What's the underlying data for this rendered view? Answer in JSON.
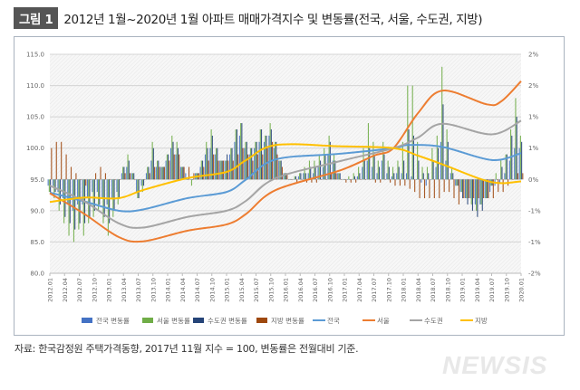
{
  "title": {
    "badge": "그림 1",
    "text": "2012년 1월~2020년 1월 아파트 매매가격지수 및 변동률(전국, 서울, 수도권, 지방)"
  },
  "source": "자료: 한국감정원 주택가격동향, 2017년 11월 지수 = 100, 변동률은 전월대비 기준.",
  "watermark": "NEWSIS",
  "chart_data": {
    "type": "bar+line",
    "title": "2012년 1월~2020년 1월 아파트 매매가격지수 및 변동률(전국, 서울, 수도권, 지방)",
    "ylim_left": [
      80,
      115
    ],
    "ylim_right_pct": [
      -1.5,
      2.0
    ],
    "left_ticks": [
      "80.0",
      "85.0",
      "90.0",
      "95.0",
      "100.0",
      "105.0",
      "110.0",
      "115.0"
    ],
    "right_ticks": [
      "-2%",
      "-1%",
      "-1%",
      "0%",
      "1%",
      "1%",
      "2%",
      "2%"
    ],
    "x_tick_labels": [
      "2012.01",
      "2012.04",
      "2012.07",
      "2012.10",
      "2013.01",
      "2013.04",
      "2013.07",
      "2013.10",
      "2014.01",
      "2014.04",
      "2014.07",
      "2014.10",
      "2015.01",
      "2015.04",
      "2015.07",
      "2015.10",
      "2016.01",
      "2016.04",
      "2016.07",
      "2016.10",
      "2017.01",
      "2017.04",
      "2017.07",
      "2017.10",
      "2018.01",
      "2018.04",
      "2018.07",
      "2018.10",
      "2019.01",
      "2019.04",
      "2019.07",
      "2019.10",
      "2020.01"
    ],
    "months": 97,
    "grid": true,
    "legend_position": "bottom",
    "bar_series": [
      {
        "name": "전국 변동률",
        "color": "#4472c4",
        "values": [
          -0.1,
          -0.1,
          -0.2,
          -0.3,
          -0.4,
          -0.5,
          -0.4,
          -0.4,
          -0.3,
          -0.2,
          -0.2,
          -0.3,
          -0.4,
          -0.3,
          -0.2,
          0.1,
          0.2,
          0.1,
          -0.2,
          -0.1,
          0.1,
          0.3,
          0.2,
          0.2,
          0.3,
          0.5,
          0.4,
          0.2,
          0.1,
          0.0,
          0.1,
          0.2,
          0.4,
          0.5,
          0.4,
          0.3,
          0.3,
          0.4,
          0.6,
          0.7,
          0.5,
          0.4,
          0.5,
          0.6,
          0.6,
          0.7,
          0.5,
          0.3,
          0.1,
          0.0,
          0.0,
          0.05,
          0.1,
          0.1,
          0.1,
          0.2,
          0.2,
          0.4,
          0.3,
          0.1,
          0.0,
          0.0,
          0.0,
          0.05,
          0.2,
          0.3,
          0.2,
          0.1,
          0.3,
          0.1,
          0.05,
          0.1,
          0.1,
          0.1,
          0.05,
          0.0,
          -0.05,
          -0.1,
          0.0,
          0.2,
          0.6,
          0.3,
          0.1,
          -0.1,
          -0.2,
          -0.3,
          -0.3,
          -0.4,
          -0.4,
          -0.3,
          -0.2,
          -0.1,
          -0.05,
          0.1,
          0.3,
          0.5,
          0.5
        ]
      },
      {
        "name": "서울 변동률",
        "color": "#70ad47",
        "values": [
          -0.2,
          -0.3,
          -0.5,
          -0.7,
          -0.9,
          -1.0,
          -0.8,
          -0.9,
          -0.7,
          -0.6,
          -0.5,
          -0.7,
          -0.9,
          -0.6,
          -0.4,
          0.2,
          0.4,
          0.1,
          -0.3,
          -0.2,
          0.2,
          0.6,
          0.3,
          0.2,
          0.4,
          0.7,
          0.6,
          0.2,
          0.0,
          -0.1,
          0.1,
          0.3,
          0.6,
          0.8,
          0.5,
          0.3,
          0.3,
          0.5,
          0.8,
          0.9,
          0.6,
          0.5,
          0.6,
          0.8,
          0.7,
          0.9,
          0.6,
          0.3,
          0.1,
          0.0,
          0.05,
          0.1,
          0.2,
          0.3,
          0.3,
          0.4,
          0.5,
          0.7,
          0.4,
          0.1,
          0.0,
          0.05,
          0.1,
          0.2,
          0.5,
          0.9,
          0.6,
          0.3,
          0.6,
          0.3,
          0.2,
          0.3,
          0.6,
          1.5,
          1.5,
          0.6,
          0.2,
          0.2,
          0.5,
          0.7,
          1.8,
          0.8,
          0.2,
          -0.1,
          -0.2,
          -0.3,
          -0.4,
          -0.5,
          -0.4,
          -0.3,
          -0.1,
          0.1,
          0.3,
          0.4,
          0.8,
          1.3,
          0.7
        ]
      },
      {
        "name": "수도권 변동률",
        "color": "#264478",
        "values": [
          -0.2,
          -0.2,
          -0.4,
          -0.6,
          -0.7,
          -0.8,
          -0.7,
          -0.7,
          -0.6,
          -0.5,
          -0.4,
          -0.6,
          -0.7,
          -0.5,
          -0.3,
          0.2,
          0.3,
          0.1,
          -0.3,
          -0.1,
          0.2,
          0.5,
          0.3,
          0.2,
          0.4,
          0.6,
          0.5,
          0.2,
          0.0,
          0.0,
          0.1,
          0.3,
          0.5,
          0.7,
          0.5,
          0.3,
          0.4,
          0.5,
          0.8,
          0.9,
          0.6,
          0.5,
          0.6,
          0.8,
          0.7,
          0.8,
          0.6,
          0.3,
          0.1,
          0.0,
          0.05,
          0.1,
          0.1,
          0.2,
          0.2,
          0.3,
          0.4,
          0.6,
          0.3,
          0.1,
          0.0,
          0.0,
          0.05,
          0.1,
          0.3,
          0.5,
          0.4,
          0.2,
          0.4,
          0.2,
          0.1,
          0.2,
          0.3,
          0.8,
          0.7,
          0.3,
          0.1,
          0.1,
          0.3,
          0.5,
          1.2,
          0.6,
          0.1,
          -0.1,
          -0.3,
          -0.4,
          -0.5,
          -0.6,
          -0.5,
          -0.3,
          -0.1,
          0.0,
          0.2,
          0.4,
          0.7,
          1.0,
          0.6
        ]
      },
      {
        "name": "지방 변동률",
        "color": "#9e480e",
        "values": [
          0.5,
          0.6,
          0.6,
          0.4,
          0.2,
          0.1,
          0.0,
          -0.1,
          0.0,
          0.1,
          0.2,
          0.1,
          0.0,
          0.0,
          0.0,
          0.1,
          0.1,
          0.0,
          0.0,
          0.0,
          0.1,
          0.2,
          0.2,
          0.2,
          0.3,
          0.4,
          0.4,
          0.2,
          0.2,
          0.1,
          0.1,
          0.2,
          0.3,
          0.4,
          0.3,
          0.3,
          0.3,
          0.3,
          0.4,
          0.5,
          0.4,
          0.3,
          0.4,
          0.4,
          0.5,
          0.6,
          0.4,
          0.2,
          0.1,
          0.0,
          -0.05,
          0.0,
          -0.05,
          -0.05,
          -0.05,
          0.0,
          0.0,
          0.1,
          0.1,
          0.0,
          -0.05,
          -0.05,
          -0.05,
          0.0,
          0.0,
          0.0,
          -0.05,
          -0.05,
          0.0,
          -0.05,
          -0.1,
          -0.1,
          -0.1,
          -0.15,
          -0.2,
          -0.3,
          -0.3,
          -0.3,
          -0.3,
          -0.3,
          -0.2,
          -0.2,
          -0.3,
          -0.4,
          -0.3,
          -0.3,
          -0.3,
          -0.3,
          -0.3,
          -0.3,
          -0.3,
          -0.2,
          -0.2,
          -0.1,
          0.0,
          0.1,
          0.1
        ]
      }
    ],
    "line_series": [
      {
        "name": "전국",
        "color": "#5b9bd5",
        "points": [
          [
            0,
            92.9
          ],
          [
            7,
            91.5
          ],
          [
            14,
            90.0
          ],
          [
            19,
            90.2
          ],
          [
            28,
            92.0
          ],
          [
            36,
            93.0
          ],
          [
            40,
            95.0
          ],
          [
            46,
            98.2
          ],
          [
            59,
            99.1
          ],
          [
            70,
            100.0
          ],
          [
            73,
            100.5
          ],
          [
            80,
            100.2
          ],
          [
            90,
            98.1
          ],
          [
            96,
            99.2
          ]
        ]
      },
      {
        "name": "서울",
        "color": "#ed7d31",
        "points": [
          [
            0,
            92.8
          ],
          [
            7,
            89.5
          ],
          [
            14,
            85.8
          ],
          [
            19,
            85.1
          ],
          [
            28,
            86.8
          ],
          [
            36,
            87.8
          ],
          [
            40,
            89.5
          ],
          [
            46,
            93.3
          ],
          [
            59,
            96.4
          ],
          [
            66,
            98.8
          ],
          [
            70,
            100.0
          ],
          [
            75,
            105.6
          ],
          [
            80,
            109.2
          ],
          [
            89,
            107.0
          ],
          [
            92,
            107.5
          ],
          [
            96,
            110.7
          ]
        ]
      },
      {
        "name": "수도권",
        "color": "#a5a5a5",
        "points": [
          [
            0,
            94.0
          ],
          [
            7,
            91.5
          ],
          [
            14,
            88.0
          ],
          [
            19,
            87.3
          ],
          [
            28,
            89.0
          ],
          [
            36,
            90.0
          ],
          [
            40,
            91.6
          ],
          [
            46,
            95.2
          ],
          [
            59,
            97.9
          ],
          [
            70,
            100.0
          ],
          [
            75,
            101.7
          ],
          [
            80,
            103.9
          ],
          [
            90,
            102.2
          ],
          [
            96,
            104.4
          ]
        ]
      },
      {
        "name": "지방",
        "color": "#ffc000",
        "points": [
          [
            0,
            91.4
          ],
          [
            7,
            92.1
          ],
          [
            14,
            92.0
          ],
          [
            19,
            93.3
          ],
          [
            28,
            95.2
          ],
          [
            36,
            96.2
          ],
          [
            40,
            98.1
          ],
          [
            46,
            100.5
          ],
          [
            59,
            100.3
          ],
          [
            70,
            100.0
          ],
          [
            75,
            98.8
          ],
          [
            80,
            97.4
          ],
          [
            88,
            95.0
          ],
          [
            92,
            94.4
          ],
          [
            96,
            94.7
          ]
        ]
      }
    ]
  }
}
